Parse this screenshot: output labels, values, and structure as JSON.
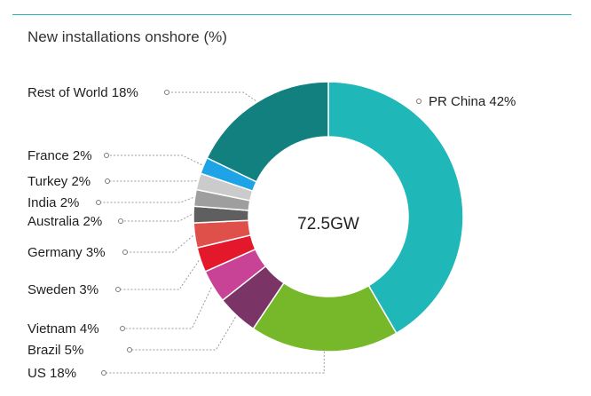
{
  "chart_data": {
    "type": "pie",
    "title": "New installations onshore (%)",
    "center_label": "72.5GW",
    "slices": [
      {
        "label": "PR China 42%",
        "value": 42,
        "color": "#1fb7b8"
      },
      {
        "label": "US 18%",
        "value": 18,
        "color": "#77b82a"
      },
      {
        "label": "Brazil 5%",
        "value": 5,
        "color": "#7a3566"
      },
      {
        "label": "Vietnam 4%",
        "value": 4,
        "color": "#c84296"
      },
      {
        "label": "Sweden 3%",
        "value": 3,
        "color": "#e3192b"
      },
      {
        "label": "Germany 3%",
        "value": 3,
        "color": "#e0504a"
      },
      {
        "label": "Australia 2%",
        "value": 2,
        "color": "#5f5f5f"
      },
      {
        "label": "India 2%",
        "value": 2,
        "color": "#9e9e9e"
      },
      {
        "label": "Turkey 2%",
        "value": 2,
        "color": "#cbcbcb"
      },
      {
        "label": "France 2%",
        "value": 2,
        "color": "#1ea3e6"
      },
      {
        "label": "Rest of World 18%",
        "value": 18,
        "color": "#138080"
      }
    ]
  }
}
